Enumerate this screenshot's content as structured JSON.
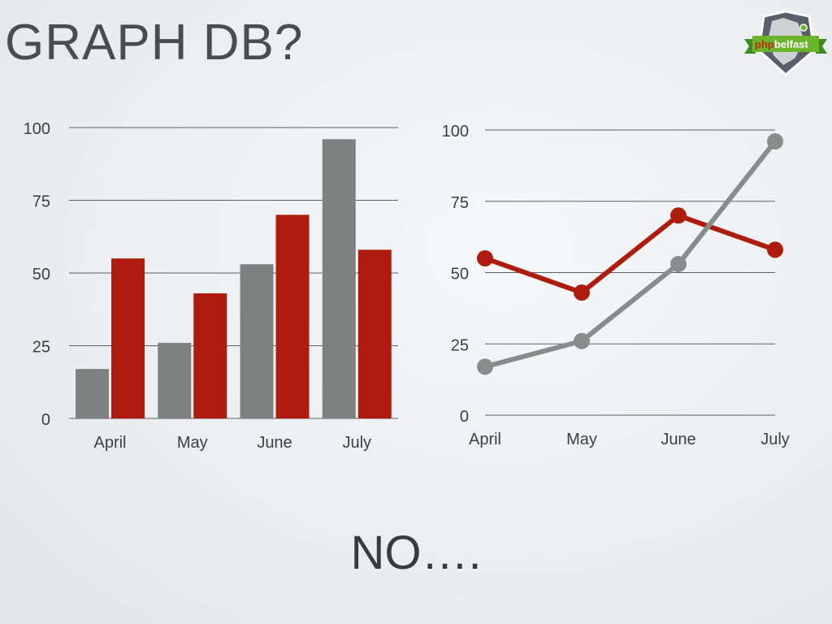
{
  "slide": {
    "title": "GRAPH DB?",
    "bottom_text": "NO…."
  },
  "logo": {
    "text": "phpbelfast",
    "part1": "php",
    "part2": "belfast"
  },
  "colors": {
    "gray": "#7d8281",
    "red": "#ad1c0e",
    "line_gray": "#8a8c8c",
    "grid": "#606060"
  },
  "chart_data": [
    {
      "type": "bar",
      "categories": [
        "April",
        "May",
        "June",
        "July"
      ],
      "series": [
        {
          "values": [
            17,
            26,
            53,
            96
          ]
        },
        {
          "values": [
            55,
            43,
            70,
            58
          ]
        }
      ],
      "yticks": [
        0,
        25,
        50,
        75,
        100
      ],
      "ylim": [
        0,
        100
      ],
      "grid": true
    },
    {
      "type": "line",
      "categories": [
        "April",
        "May",
        "June",
        "July"
      ],
      "series": [
        {
          "values": [
            55,
            43,
            70,
            58
          ]
        },
        {
          "values": [
            17,
            26,
            53,
            96
          ]
        }
      ],
      "yticks": [
        0,
        25,
        50,
        75,
        100
      ],
      "ylim": [
        0,
        100
      ],
      "grid": true
    }
  ]
}
